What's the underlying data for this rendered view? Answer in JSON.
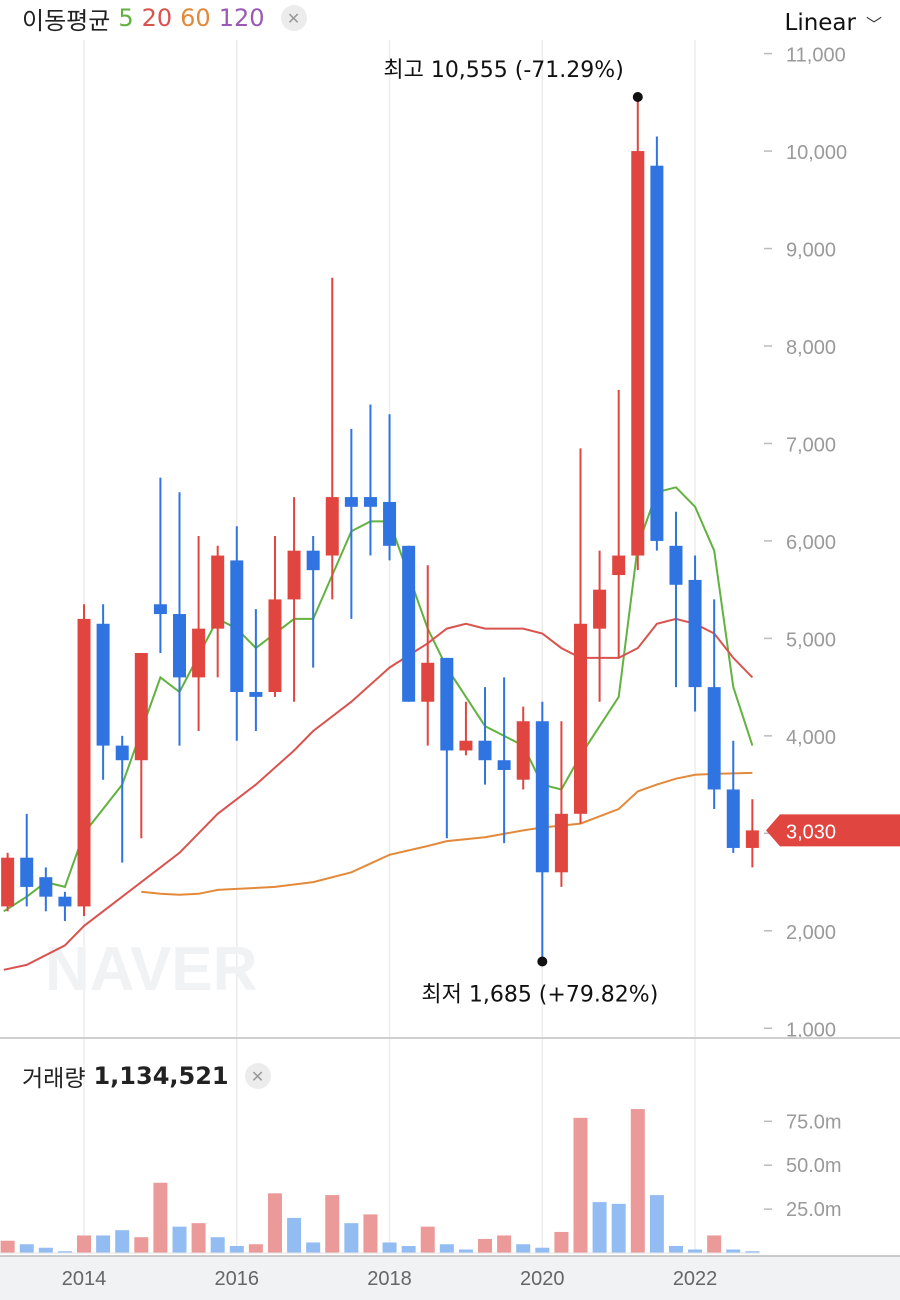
{
  "legend": {
    "title": "이동평균",
    "ma_labels": [
      "5",
      "20",
      "60",
      "120"
    ],
    "ma_colors": [
      "#62b23f",
      "#d9534f",
      "#e28a3a",
      "#9b59b6"
    ]
  },
  "scale": {
    "label": "Linear"
  },
  "volume": {
    "title": "거래량",
    "value": "1,134,521"
  },
  "watermark": "NAVER",
  "colors": {
    "up": "#e0463f",
    "down": "#2f74e0",
    "vol_up": "#eb9999",
    "vol_down": "#93bdf2"
  },
  "chart_data": {
    "type": "candlestick",
    "price_axis": {
      "ticks": [
        1000,
        2000,
        3000,
        4000,
        5000,
        6000,
        7000,
        8000,
        9000,
        10000,
        11000
      ],
      "tick_labels": [
        "1,000",
        "2,000",
        "3,000",
        "4,000",
        "5,000",
        "6,000",
        "7,000",
        "8,000",
        "9,000",
        "10,000",
        "11,000"
      ],
      "range": [
        900,
        11550
      ]
    },
    "time_axis": {
      "ticks": [
        2014,
        2016,
        2018,
        2020,
        2022
      ],
      "tick_labels": [
        "2014",
        "2016",
        "2018",
        "2020",
        "2022"
      ],
      "range": [
        2012.9,
        2022.85
      ]
    },
    "candles": [
      {
        "t": 2013.0,
        "o": 2250,
        "h": 2800,
        "l": 2200,
        "c": 2750
      },
      {
        "t": 2013.25,
        "o": 2750,
        "h": 3200,
        "l": 2250,
        "c": 2450
      },
      {
        "t": 2013.5,
        "o": 2550,
        "h": 2650,
        "l": 2200,
        "c": 2350
      },
      {
        "t": 2013.75,
        "o": 2350,
        "h": 2400,
        "l": 2100,
        "c": 2250
      },
      {
        "t": 2014.0,
        "o": 2250,
        "h": 5350,
        "l": 2150,
        "c": 5200
      },
      {
        "t": 2014.25,
        "o": 5150,
        "h": 5350,
        "l": 3550,
        "c": 3900
      },
      {
        "t": 2014.5,
        "o": 3900,
        "h": 4000,
        "l": 2700,
        "c": 3750
      },
      {
        "t": 2014.75,
        "o": 3750,
        "h": 4850,
        "l": 2950,
        "c": 4850
      },
      {
        "t": 2015.0,
        "o": 5350,
        "h": 6650,
        "l": 4850,
        "c": 5250
      },
      {
        "t": 2015.25,
        "o": 5250,
        "h": 6500,
        "l": 3900,
        "c": 4600
      },
      {
        "t": 2015.5,
        "o": 4600,
        "h": 6050,
        "l": 4050,
        "c": 5100
      },
      {
        "t": 2015.75,
        "o": 5100,
        "h": 5950,
        "l": 4600,
        "c": 5850
      },
      {
        "t": 2016.0,
        "o": 5800,
        "h": 6150,
        "l": 3950,
        "c": 4450
      },
      {
        "t": 2016.25,
        "o": 4450,
        "h": 5300,
        "l": 4050,
        "c": 4400
      },
      {
        "t": 2016.5,
        "o": 4450,
        "h": 6050,
        "l": 4400,
        "c": 5400
      },
      {
        "t": 2016.75,
        "o": 5400,
        "h": 6450,
        "l": 4350,
        "c": 5900
      },
      {
        "t": 2017.0,
        "o": 5900,
        "h": 6050,
        "l": 4700,
        "c": 5700
      },
      {
        "t": 2017.25,
        "o": 5850,
        "h": 8700,
        "l": 5400,
        "c": 6450
      },
      {
        "t": 2017.5,
        "o": 6450,
        "h": 7150,
        "l": 5200,
        "c": 6350
      },
      {
        "t": 2017.75,
        "o": 6450,
        "h": 7400,
        "l": 5850,
        "c": 6350
      },
      {
        "t": 2018.0,
        "o": 6400,
        "h": 7300,
        "l": 5800,
        "c": 5950
      },
      {
        "t": 2018.25,
        "o": 5950,
        "h": 5950,
        "l": 4350,
        "c": 4350
      },
      {
        "t": 2018.5,
        "o": 4350,
        "h": 5750,
        "l": 3900,
        "c": 4750
      },
      {
        "t": 2018.75,
        "o": 4800,
        "h": 4800,
        "l": 2950,
        "c": 3850
      },
      {
        "t": 2019.0,
        "o": 3850,
        "h": 4350,
        "l": 3800,
        "c": 3950
      },
      {
        "t": 2019.25,
        "o": 3950,
        "h": 4500,
        "l": 3500,
        "c": 3750
      },
      {
        "t": 2019.5,
        "o": 3750,
        "h": 4600,
        "l": 2900,
        "c": 3650
      },
      {
        "t": 2019.75,
        "o": 3550,
        "h": 4300,
        "l": 3450,
        "c": 4150
      },
      {
        "t": 2020.0,
        "o": 4150,
        "h": 4350,
        "l": 1685,
        "c": 2600
      },
      {
        "t": 2020.25,
        "o": 2600,
        "h": 4150,
        "l": 2450,
        "c": 3200
      },
      {
        "t": 2020.5,
        "o": 3200,
        "h": 6950,
        "l": 3100,
        "c": 5150
      },
      {
        "t": 2020.75,
        "o": 5100,
        "h": 5900,
        "l": 4350,
        "c": 5500
      },
      {
        "t": 2021.0,
        "o": 5650,
        "h": 7550,
        "l": 4800,
        "c": 5850
      },
      {
        "t": 2021.25,
        "o": 5850,
        "h": 10555,
        "l": 5700,
        "c": 10000
      },
      {
        "t": 2021.5,
        "o": 9850,
        "h": 10150,
        "l": 5900,
        "c": 6000
      },
      {
        "t": 2021.75,
        "o": 5950,
        "h": 6300,
        "l": 4500,
        "c": 5550
      },
      {
        "t": 2022.0,
        "o": 5600,
        "h": 5850,
        "l": 4250,
        "c": 4500
      },
      {
        "t": 2022.25,
        "o": 4500,
        "h": 5400,
        "l": 3250,
        "c": 3450
      },
      {
        "t": 2022.5,
        "o": 3450,
        "h": 3950,
        "l": 2800,
        "c": 2850
      },
      {
        "t": 2022.75,
        "o": 2850,
        "h": 3350,
        "l": 2650,
        "c": 3030
      }
    ],
    "moving_averages": [
      {
        "name": "5",
        "color": "#62b23f",
        "points": [
          [
            2012.95,
            2200
          ],
          [
            2013.25,
            2350
          ],
          [
            2013.5,
            2500
          ],
          [
            2013.75,
            2450
          ],
          [
            2014.0,
            3000
          ],
          [
            2014.5,
            3500
          ],
          [
            2015.0,
            4600
          ],
          [
            2015.25,
            4450
          ],
          [
            2015.75,
            5200
          ],
          [
            2016.0,
            5100
          ],
          [
            2016.25,
            4900
          ],
          [
            2016.75,
            5200
          ],
          [
            2017.0,
            5200
          ],
          [
            2017.5,
            6100
          ],
          [
            2017.75,
            6200
          ],
          [
            2018.0,
            6200
          ],
          [
            2018.5,
            5100
          ],
          [
            2018.75,
            4700
          ],
          [
            2019.25,
            4100
          ],
          [
            2019.75,
            3900
          ],
          [
            2020.0,
            3500
          ],
          [
            2020.25,
            3450
          ],
          [
            2020.5,
            3800
          ],
          [
            2021.0,
            4400
          ],
          [
            2021.25,
            5950
          ],
          [
            2021.5,
            6500
          ],
          [
            2021.75,
            6550
          ],
          [
            2022.0,
            6350
          ],
          [
            2022.25,
            5900
          ],
          [
            2022.5,
            4500
          ],
          [
            2022.75,
            3900
          ]
        ]
      },
      {
        "name": "20",
        "color": "#d9534f",
        "points": [
          [
            2012.95,
            1600
          ],
          [
            2013.25,
            1650
          ],
          [
            2013.75,
            1850
          ],
          [
            2014.0,
            2050
          ],
          [
            2014.5,
            2350
          ],
          [
            2015.0,
            2650
          ],
          [
            2015.25,
            2800
          ],
          [
            2015.75,
            3200
          ],
          [
            2016.25,
            3500
          ],
          [
            2016.75,
            3850
          ],
          [
            2017.0,
            4050
          ],
          [
            2017.5,
            4350
          ],
          [
            2018.0,
            4700
          ],
          [
            2018.5,
            4950
          ],
          [
            2018.75,
            5100
          ],
          [
            2019.0,
            5150
          ],
          [
            2019.25,
            5100
          ],
          [
            2019.75,
            5100
          ],
          [
            2020.0,
            5050
          ],
          [
            2020.25,
            4900
          ],
          [
            2020.5,
            4800
          ],
          [
            2021.0,
            4800
          ],
          [
            2021.25,
            4900
          ],
          [
            2021.5,
            5150
          ],
          [
            2021.75,
            5200
          ],
          [
            2022.0,
            5150
          ],
          [
            2022.25,
            5050
          ],
          [
            2022.5,
            4800
          ],
          [
            2022.75,
            4600
          ]
        ]
      },
      {
        "name": "60",
        "color": "#e28a3a",
        "points": [
          [
            2014.75,
            2400
          ],
          [
            2015.0,
            2380
          ],
          [
            2015.25,
            2370
          ],
          [
            2015.5,
            2380
          ],
          [
            2015.75,
            2420
          ],
          [
            2016.0,
            2430
          ],
          [
            2016.5,
            2450
          ],
          [
            2017.0,
            2500
          ],
          [
            2017.5,
            2600
          ],
          [
            2018.0,
            2780
          ],
          [
            2018.5,
            2870
          ],
          [
            2018.75,
            2920
          ],
          [
            2019.25,
            2960
          ],
          [
            2019.75,
            3030
          ],
          [
            2020.0,
            3060
          ],
          [
            2020.5,
            3100
          ],
          [
            2021.0,
            3250
          ],
          [
            2021.25,
            3430
          ],
          [
            2021.5,
            3500
          ],
          [
            2021.75,
            3560
          ],
          [
            2022.0,
            3600
          ],
          [
            2022.25,
            3610
          ],
          [
            2022.75,
            3620
          ]
        ]
      }
    ],
    "volume_axis": {
      "ticks": [
        25000000,
        50000000,
        75000000
      ],
      "tick_labels": [
        "25.0m",
        "50.0m",
        "75.0m"
      ],
      "max": 90000000
    },
    "volumes": [
      7000000,
      5000000,
      3000000,
      1000000,
      10000000,
      10000000,
      13000000,
      9000000,
      40000000,
      15000000,
      17000000,
      9000000,
      4000000,
      5000000,
      34000000,
      20000000,
      6000000,
      33000000,
      17000000,
      22000000,
      6000000,
      4000000,
      15000000,
      5000000,
      2000000,
      8000000,
      10000000,
      5000000,
      3000000,
      12000000,
      77000000,
      29000000,
      28000000,
      82000000,
      33000000,
      4000000,
      2000000,
      10000000,
      2000000,
      1000000
    ],
    "volume_up": [
      true,
      false,
      false,
      false,
      true,
      false,
      false,
      true,
      true,
      false,
      true,
      false,
      false,
      true,
      true,
      false,
      false,
      true,
      false,
      true,
      false,
      false,
      true,
      false,
      false,
      true,
      true,
      false,
      false,
      true,
      true,
      false,
      false,
      true,
      false,
      false,
      false,
      true,
      false,
      false
    ],
    "annotations": {
      "high": {
        "label": "최고 10,555 (-71.29%)",
        "t": 2021.25,
        "v": 10555
      },
      "low": {
        "label": "최저 1,685 (+79.82%)",
        "t": 2020.0,
        "v": 1685
      }
    },
    "last_price": {
      "label": "3,030",
      "v": 3030
    }
  }
}
